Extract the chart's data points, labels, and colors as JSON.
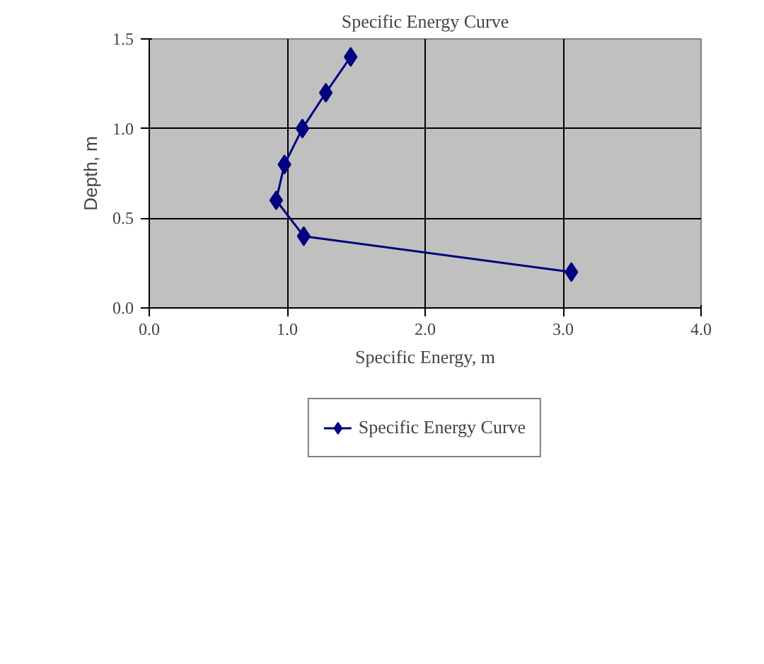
{
  "chart_data": {
    "type": "line",
    "title": "Specific Energy Curve",
    "xlabel": "Specific Energy, m",
    "ylabel": "Depth, m",
    "x": [
      3.06,
      1.12,
      0.92,
      0.98,
      1.11,
      1.28,
      1.46
    ],
    "series": [
      {
        "name": "Specific Energy Curve",
        "color": "#000080",
        "values": [
          0.2,
          0.4,
          0.6,
          0.8,
          1.0,
          1.2,
          1.4
        ]
      }
    ],
    "xlim": [
      0,
      4
    ],
    "ylim": [
      0,
      1.5
    ],
    "xticks": [
      {
        "value": 0,
        "label": "0.0"
      },
      {
        "value": 1,
        "label": "1.0"
      },
      {
        "value": 2,
        "label": "2.0"
      },
      {
        "value": 3,
        "label": "3.0"
      },
      {
        "value": 4,
        "label": "4.0"
      }
    ],
    "yticks": [
      {
        "value": 0,
        "label": "0.0"
      },
      {
        "value": 0.5,
        "label": "0.5"
      },
      {
        "value": 1,
        "label": "1.0"
      },
      {
        "value": 1.5,
        "label": "1.5"
      }
    ],
    "grid": true,
    "legend": "bottom",
    "marker": "diamond",
    "line_style": "solid"
  }
}
